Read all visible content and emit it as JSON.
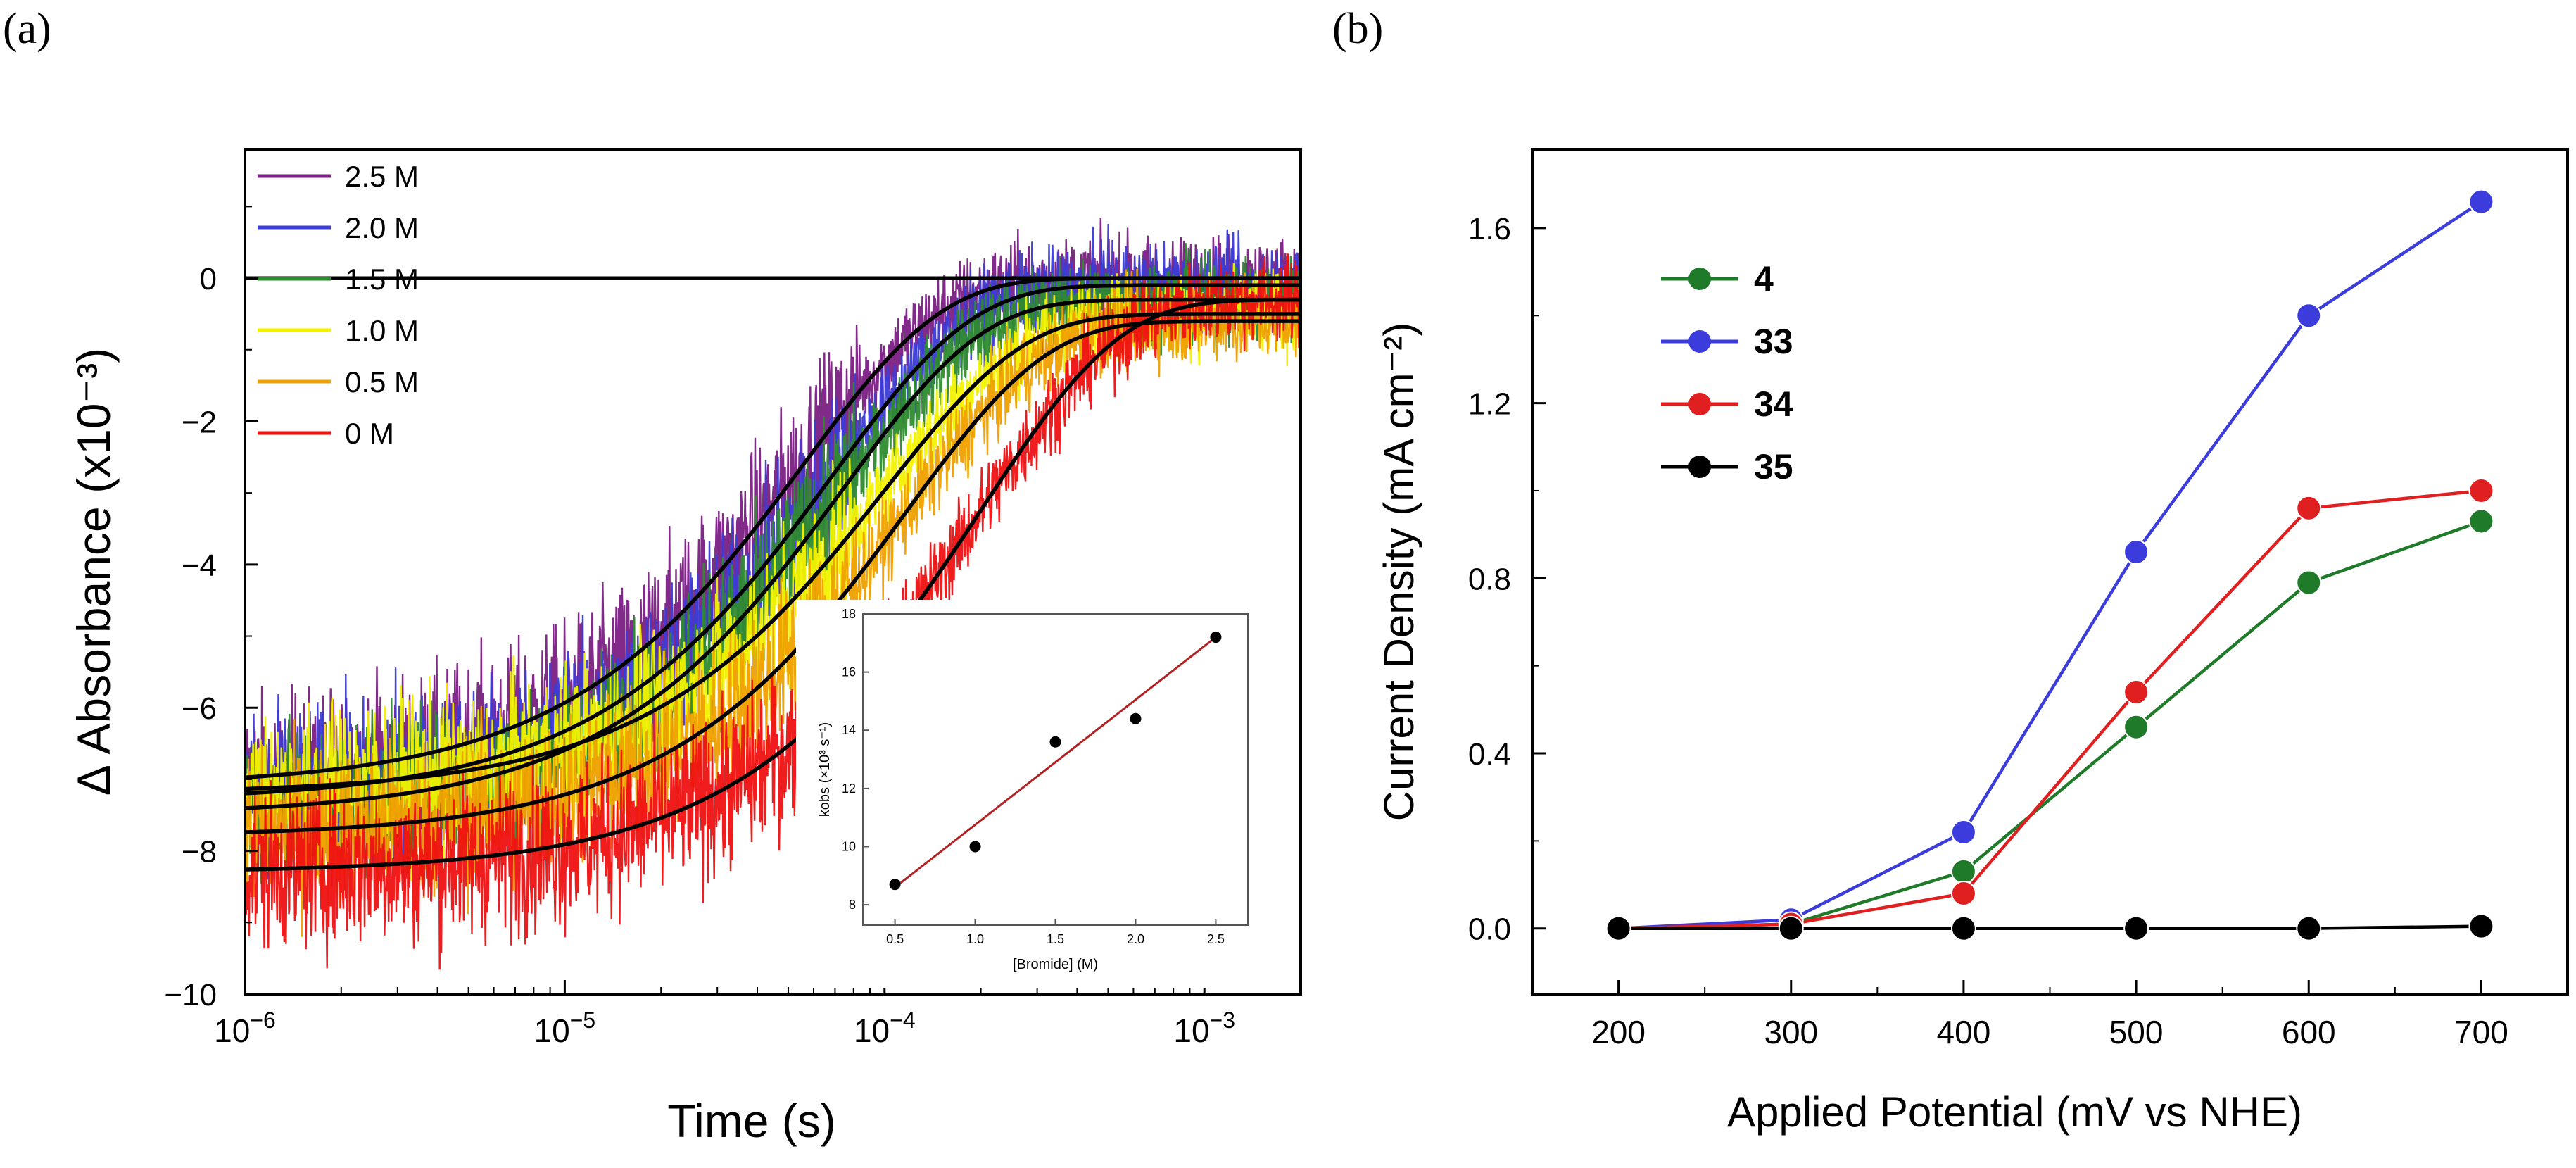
{
  "panels": {
    "a_label": "(a)",
    "b_label": "(b)"
  },
  "chart_data": [
    {
      "type": "line",
      "panel": "(a)",
      "xlabel": "Time (s)",
      "ylabel": "Δ Absorbance (x10⁻³)",
      "xscale": "log",
      "xlim": [
        1e-06,
        0.002
      ],
      "ylim": [
        -10,
        1.8
      ],
      "x_ticks": [
        {
          "value": 1e-06,
          "base": "10",
          "exp": "−6"
        },
        {
          "value": 1e-05,
          "base": "10",
          "exp": "−5"
        },
        {
          "value": 0.0001,
          "base": "10",
          "exp": "−4"
        },
        {
          "value": 0.001,
          "base": "10",
          "exp": "−3"
        }
      ],
      "y_ticks": [
        0,
        -2,
        -4,
        -6,
        -8,
        -10
      ],
      "y_tick_labels": [
        "0",
        "−2",
        "−4",
        "−6",
        "−8",
        "−10"
      ],
      "legend_position": "top-left",
      "series": [
        {
          "name": "2.5 M",
          "color": "#7b1f84",
          "a0": -7.1,
          "k": 18000,
          "ainf": 0.0
        },
        {
          "name": "2.0 M",
          "color": "#3b3bd6",
          "a0": -7.3,
          "k": 14500,
          "ainf": -0.1
        },
        {
          "name": "1.5 M",
          "color": "#2e8b2e",
          "a0": -7.5,
          "k": 13500,
          "ainf": -0.3
        },
        {
          "name": "1.0 M",
          "color": "#f2f200",
          "a0": -7.2,
          "k": 10000,
          "ainf": -0.5
        },
        {
          "name": "0.5 M",
          "color": "#f0a000",
          "a0": -7.8,
          "k": 8500,
          "ainf": -0.6
        },
        {
          "name": "0 M",
          "color": "#ee1111",
          "a0": -8.3,
          "k": 5000,
          "ainf": -0.3
        }
      ],
      "inset": {
        "type": "scatter",
        "xlabel": "[Bromide] (M)",
        "ylabel": "kobs (×10³ s⁻¹)",
        "xlim": [
          0.3,
          2.7
        ],
        "ylim": [
          7.3,
          18
        ],
        "x_ticks": [
          0.5,
          1.0,
          1.5,
          2.0,
          2.5
        ],
        "x_tick_labels": [
          "0.5",
          "1.0",
          "1.5",
          "2.0",
          "2.5"
        ],
        "y_ticks": [
          8,
          10,
          12,
          14,
          16,
          18
        ],
        "points": [
          {
            "x": 0.5,
            "y": 8.7
          },
          {
            "x": 1.0,
            "y": 10.0
          },
          {
            "x": 1.5,
            "y": 13.6
          },
          {
            "x": 2.0,
            "y": 14.4
          },
          {
            "x": 2.5,
            "y": 17.2
          }
        ],
        "fit_line": [
          {
            "x": 0.5,
            "y": 8.6
          },
          {
            "x": 2.5,
            "y": 17.2
          }
        ],
        "fit_color": "#b22222"
      }
    },
    {
      "type": "line",
      "panel": "(b)",
      "xlabel": "Applied Potential (mV vs NHE)",
      "ylabel": "Current Density (mA cm⁻²)",
      "xlim": [
        150,
        750
      ],
      "ylim": [
        -0.15,
        1.78
      ],
      "x": [
        200,
        300,
        400,
        500,
        600,
        700
      ],
      "y_ticks": [
        0.0,
        0.4,
        0.8,
        1.2,
        1.6
      ],
      "y_tick_labels": [
        "0.0",
        "0.4",
        "0.8",
        "1.2",
        "1.6"
      ],
      "legend_position": "top-left",
      "series": [
        {
          "name": "4",
          "color": "#1f7a2a",
          "values": [
            0.0,
            0.01,
            0.13,
            0.46,
            0.79,
            0.93
          ]
        },
        {
          "name": "33",
          "color": "#3c3cdc",
          "values": [
            0.0,
            0.02,
            0.22,
            0.86,
            1.4,
            1.66
          ]
        },
        {
          "name": "34",
          "color": "#e02020",
          "values": [
            0.0,
            0.01,
            0.08,
            0.54,
            0.96,
            1.0
          ]
        },
        {
          "name": "35",
          "color": "#000000",
          "values": [
            0.0,
            0.0,
            0.0,
            0.0,
            0.0,
            0.005
          ]
        }
      ]
    }
  ]
}
